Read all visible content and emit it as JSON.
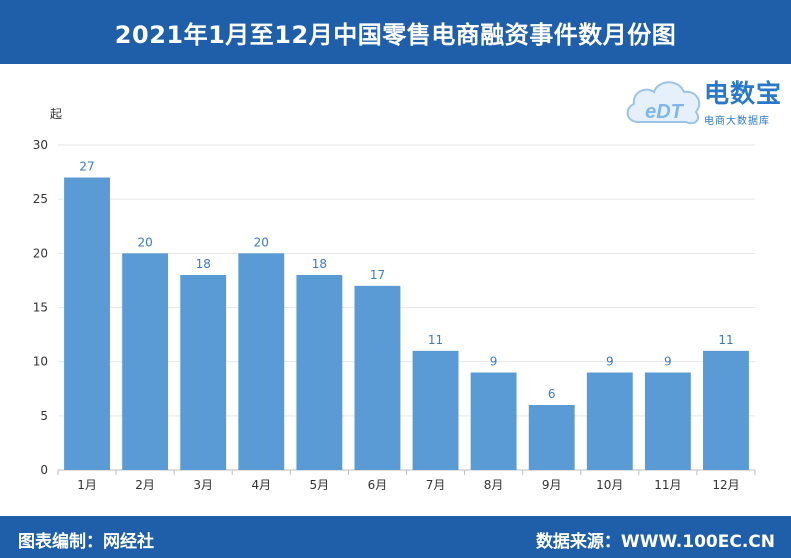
{
  "header": {
    "title": "2021年1月至12月中国零售电商融资事件数月份图"
  },
  "footer": {
    "editor": "图表编制：网经社",
    "source": "数据来源：WWW.100EC.CN"
  },
  "logo": {
    "mark_text": "eDT",
    "brand": "电数宝",
    "subtitle": "电商大数据库",
    "icon": "cloud-icon"
  },
  "colors": {
    "header_bg": "#1f5ea8",
    "bar": "#5b9bd5",
    "data_label": "#3a7cc4"
  },
  "chart_data": {
    "type": "bar",
    "title": "2021年1月至12月中国零售电商融资事件数月份图",
    "ylabel": "起",
    "xlabel": "",
    "categories": [
      "1月",
      "2月",
      "3月",
      "4月",
      "5月",
      "6月",
      "7月",
      "8月",
      "9月",
      "10月",
      "11月",
      "12月"
    ],
    "values": [
      27,
      20,
      18,
      20,
      18,
      17,
      11,
      9,
      6,
      9,
      9,
      11
    ],
    "ylim": [
      0,
      30
    ],
    "yticks": [
      0,
      5,
      10,
      15,
      20,
      25,
      30
    ],
    "grid": true,
    "legend": "none"
  }
}
